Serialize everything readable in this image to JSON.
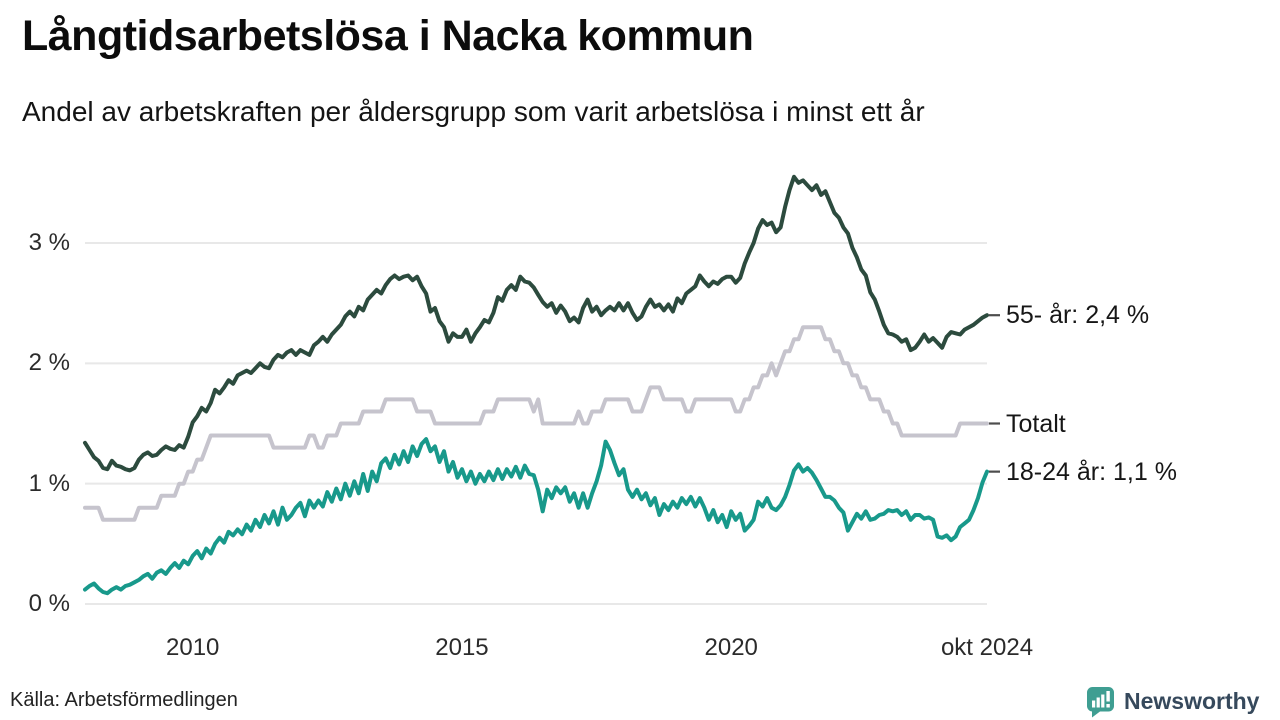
{
  "header": {
    "title": "Långtidsarbetslösa i Nacka kommun",
    "subtitle": "Andel av arbetskraften per åldersgrupp som varit arbetslösa i minst ett år"
  },
  "footer": {
    "source": "Källa: Arbetsförmedlingen",
    "brand": "Newsworthy",
    "brand_text_color": "#36495c",
    "brand_icon_color": "#3f9e92"
  },
  "chart_data": {
    "type": "line",
    "title": "Långtidsarbetslösa i Nacka kommun",
    "subtitle": "Andel av arbetskraften per åldersgrupp som varit arbetslösa i minst ett år",
    "x_unit": "month",
    "x_range": {
      "start": "2008-01",
      "end": "2024-10"
    },
    "x_ticks": [
      {
        "label": "2010",
        "year": 2010.0
      },
      {
        "label": "2015",
        "year": 2015.0
      },
      {
        "label": "2020",
        "year": 2020.0
      },
      {
        "label": "okt 2024",
        "year": 2024.75
      }
    ],
    "y_ticks": [
      {
        "label": "0 %",
        "value": 0
      },
      {
        "label": "1 %",
        "value": 1
      },
      {
        "label": "2 %",
        "value": 2
      },
      {
        "label": "3 %",
        "value": 3
      }
    ],
    "ylim": [
      0,
      3.6
    ],
    "grid": true,
    "gridline_color": "#e8e8e8",
    "end_dash_color": "#4d4d4d",
    "legend_position": "right-end-labels",
    "series": [
      {
        "name": "Totalt",
        "end_label": "Totalt",
        "end_value_label": "1,5 %",
        "color": "#c6c4cd",
        "values": [
          0.8,
          0.8,
          0.8,
          0.8,
          0.7,
          0.7,
          0.7,
          0.7,
          0.7,
          0.7,
          0.7,
          0.7,
          0.8,
          0.8,
          0.8,
          0.8,
          0.8,
          0.9,
          0.9,
          0.9,
          0.9,
          1.0,
          1.0,
          1.1,
          1.1,
          1.2,
          1.2,
          1.3,
          1.4,
          1.4,
          1.4,
          1.4,
          1.4,
          1.4,
          1.4,
          1.4,
          1.4,
          1.4,
          1.4,
          1.4,
          1.4,
          1.4,
          1.3,
          1.3,
          1.3,
          1.3,
          1.3,
          1.3,
          1.3,
          1.3,
          1.4,
          1.4,
          1.3,
          1.3,
          1.4,
          1.4,
          1.4,
          1.5,
          1.5,
          1.5,
          1.5,
          1.5,
          1.6,
          1.6,
          1.6,
          1.6,
          1.6,
          1.7,
          1.7,
          1.7,
          1.7,
          1.7,
          1.7,
          1.7,
          1.6,
          1.6,
          1.6,
          1.6,
          1.5,
          1.5,
          1.5,
          1.5,
          1.5,
          1.5,
          1.5,
          1.5,
          1.5,
          1.5,
          1.5,
          1.6,
          1.6,
          1.6,
          1.7,
          1.7,
          1.7,
          1.7,
          1.7,
          1.7,
          1.7,
          1.7,
          1.6,
          1.7,
          1.5,
          1.5,
          1.5,
          1.5,
          1.5,
          1.5,
          1.5,
          1.5,
          1.6,
          1.5,
          1.5,
          1.6,
          1.6,
          1.6,
          1.7,
          1.7,
          1.7,
          1.7,
          1.7,
          1.7,
          1.6,
          1.6,
          1.6,
          1.7,
          1.8,
          1.8,
          1.8,
          1.7,
          1.7,
          1.7,
          1.7,
          1.7,
          1.6,
          1.6,
          1.7,
          1.7,
          1.7,
          1.7,
          1.7,
          1.7,
          1.7,
          1.7,
          1.7,
          1.6,
          1.6,
          1.7,
          1.7,
          1.8,
          1.8,
          1.9,
          1.9,
          2.0,
          1.9,
          2.0,
          2.1,
          2.1,
          2.2,
          2.2,
          2.3,
          2.3,
          2.3,
          2.3,
          2.3,
          2.2,
          2.2,
          2.1,
          2.1,
          2.0,
          2.0,
          1.9,
          1.9,
          1.8,
          1.8,
          1.7,
          1.7,
          1.7,
          1.6,
          1.6,
          1.5,
          1.5,
          1.4,
          1.4,
          1.4,
          1.4,
          1.4,
          1.4,
          1.4,
          1.4,
          1.4,
          1.4,
          1.4,
          1.4,
          1.4,
          1.5,
          1.5,
          1.5,
          1.5,
          1.5,
          1.5,
          1.5
        ]
      },
      {
        "name": "55- år",
        "end_label": "55- år: 2,4 %",
        "end_value_label": "2,4 %",
        "color": "#2c4b3e",
        "values": [
          1.34,
          1.28,
          1.22,
          1.19,
          1.13,
          1.12,
          1.19,
          1.15,
          1.14,
          1.12,
          1.11,
          1.13,
          1.2,
          1.24,
          1.26,
          1.23,
          1.24,
          1.28,
          1.31,
          1.29,
          1.28,
          1.32,
          1.3,
          1.39,
          1.51,
          1.56,
          1.63,
          1.6,
          1.67,
          1.78,
          1.75,
          1.8,
          1.86,
          1.83,
          1.9,
          1.92,
          1.94,
          1.92,
          1.96,
          2.0,
          1.97,
          1.96,
          2.03,
          2.07,
          2.05,
          2.09,
          2.11,
          2.07,
          2.11,
          2.09,
          2.07,
          2.15,
          2.18,
          2.22,
          2.18,
          2.24,
          2.28,
          2.32,
          2.39,
          2.43,
          2.39,
          2.47,
          2.44,
          2.53,
          2.57,
          2.61,
          2.58,
          2.65,
          2.7,
          2.73,
          2.7,
          2.72,
          2.73,
          2.69,
          2.72,
          2.64,
          2.58,
          2.43,
          2.46,
          2.35,
          2.3,
          2.18,
          2.25,
          2.22,
          2.22,
          2.28,
          2.18,
          2.25,
          2.3,
          2.36,
          2.34,
          2.42,
          2.55,
          2.52,
          2.61,
          2.65,
          2.61,
          2.72,
          2.68,
          2.67,
          2.63,
          2.57,
          2.51,
          2.47,
          2.5,
          2.42,
          2.48,
          2.43,
          2.35,
          2.38,
          2.34,
          2.46,
          2.53,
          2.43,
          2.47,
          2.4,
          2.44,
          2.47,
          2.44,
          2.5,
          2.44,
          2.5,
          2.42,
          2.36,
          2.39,
          2.47,
          2.53,
          2.47,
          2.49,
          2.44,
          2.49,
          2.43,
          2.54,
          2.5,
          2.58,
          2.61,
          2.64,
          2.73,
          2.68,
          2.64,
          2.68,
          2.66,
          2.7,
          2.72,
          2.72,
          2.67,
          2.71,
          2.83,
          2.92,
          3.0,
          3.12,
          3.19,
          3.15,
          3.17,
          3.09,
          3.13,
          3.3,
          3.44,
          3.55,
          3.5,
          3.52,
          3.48,
          3.44,
          3.48,
          3.4,
          3.43,
          3.34,
          3.25,
          3.21,
          3.13,
          3.08,
          2.96,
          2.88,
          2.78,
          2.73,
          2.59,
          2.53,
          2.43,
          2.32,
          2.25,
          2.24,
          2.22,
          2.18,
          2.2,
          2.11,
          2.13,
          2.18,
          2.24,
          2.18,
          2.21,
          2.17,
          2.13,
          2.22,
          2.26,
          2.25,
          2.24,
          2.28,
          2.3,
          2.32,
          2.35,
          2.38,
          2.4
        ]
      },
      {
        "name": "18-24 år",
        "end_label": "18-24 år: 1,1 %",
        "end_value_label": "1,1 %",
        "color": "#18998b",
        "values": [
          0.12,
          0.15,
          0.17,
          0.13,
          0.1,
          0.09,
          0.12,
          0.14,
          0.12,
          0.15,
          0.16,
          0.18,
          0.2,
          0.23,
          0.25,
          0.21,
          0.26,
          0.28,
          0.25,
          0.3,
          0.34,
          0.3,
          0.36,
          0.33,
          0.4,
          0.44,
          0.38,
          0.46,
          0.42,
          0.5,
          0.55,
          0.51,
          0.6,
          0.57,
          0.62,
          0.58,
          0.66,
          0.61,
          0.7,
          0.64,
          0.74,
          0.67,
          0.77,
          0.66,
          0.8,
          0.7,
          0.74,
          0.8,
          0.84,
          0.73,
          0.86,
          0.8,
          0.86,
          0.81,
          0.93,
          0.85,
          0.96,
          0.87,
          1.0,
          0.9,
          1.02,
          0.92,
          1.08,
          0.94,
          1.1,
          1.02,
          1.17,
          1.21,
          1.13,
          1.24,
          1.16,
          1.27,
          1.18,
          1.31,
          1.23,
          1.33,
          1.37,
          1.27,
          1.31,
          1.18,
          1.27,
          1.1,
          1.18,
          1.05,
          1.12,
          1.02,
          1.1,
          1.0,
          1.08,
          1.02,
          1.1,
          1.03,
          1.12,
          1.04,
          1.12,
          1.06,
          1.14,
          1.05,
          1.15,
          1.08,
          1.07,
          0.95,
          0.77,
          0.95,
          0.88,
          0.97,
          0.92,
          0.97,
          0.85,
          0.92,
          0.8,
          0.92,
          0.8,
          0.92,
          1.02,
          1.15,
          1.35,
          1.28,
          1.17,
          1.07,
          1.12,
          0.95,
          0.89,
          0.95,
          0.87,
          0.92,
          0.82,
          0.88,
          0.74,
          0.83,
          0.78,
          0.85,
          0.8,
          0.88,
          0.83,
          0.89,
          0.81,
          0.88,
          0.8,
          0.7,
          0.78,
          0.68,
          0.74,
          0.64,
          0.77,
          0.7,
          0.75,
          0.61,
          0.65,
          0.7,
          0.85,
          0.81,
          0.88,
          0.8,
          0.78,
          0.82,
          0.89,
          0.99,
          1.11,
          1.16,
          1.1,
          1.13,
          1.09,
          1.03,
          0.96,
          0.89,
          0.89,
          0.86,
          0.8,
          0.76,
          0.61,
          0.68,
          0.75,
          0.71,
          0.77,
          0.7,
          0.71,
          0.74,
          0.75,
          0.78,
          0.77,
          0.78,
          0.74,
          0.77,
          0.7,
          0.74,
          0.74,
          0.71,
          0.72,
          0.7,
          0.56,
          0.55,
          0.57,
          0.53,
          0.56,
          0.64,
          0.67,
          0.7,
          0.78,
          0.88,
          1.01,
          1.1
        ]
      }
    ]
  }
}
